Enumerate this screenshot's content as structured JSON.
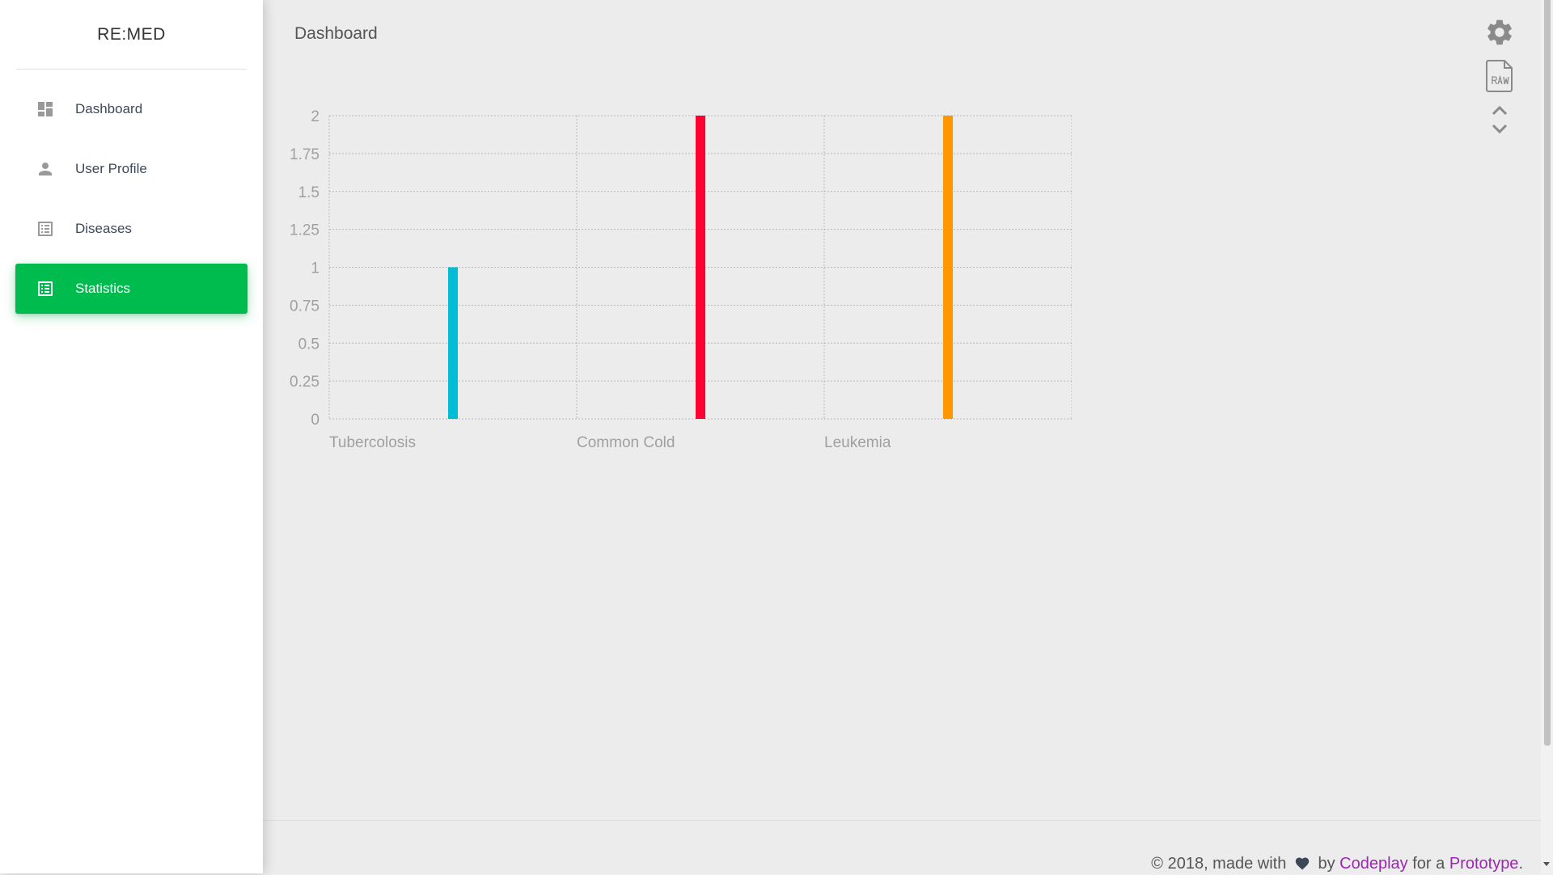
{
  "app": {
    "brand": "RE:MED"
  },
  "sidebar": {
    "items": [
      {
        "label": "Dashboard",
        "icon": "dashboard-icon",
        "active": false
      },
      {
        "label": "User Profile",
        "icon": "person-icon",
        "active": false
      },
      {
        "label": "Diseases",
        "icon": "list-icon",
        "active": false
      },
      {
        "label": "Statistics",
        "icon": "list-icon",
        "active": true
      }
    ]
  },
  "header": {
    "title": "Dashboard"
  },
  "tools": [
    "gear-icon",
    "raw-file-icon",
    "expand-collapse-icon"
  ],
  "colors": {
    "accent": "#00bb4d",
    "link": "#9c27b0",
    "series": [
      "#00bcd4",
      "#ff0033",
      "#ff9800"
    ]
  },
  "chart_data": {
    "type": "bar",
    "categories": [
      "Tubercolosis",
      "Common Cold",
      "Leukemia"
    ],
    "values": [
      1,
      2,
      2
    ],
    "ylim": [
      0,
      2
    ],
    "yticks": [
      "0",
      "0.25",
      "0.5",
      "0.75",
      "1",
      "1.25",
      "1.5",
      "1.75",
      "2"
    ],
    "grid": true
  },
  "footer": {
    "prefix": "© 2018, made with",
    "by": "by",
    "author": "Codeplay",
    "for": "for a",
    "project": "Prototype",
    "suffix": "."
  }
}
